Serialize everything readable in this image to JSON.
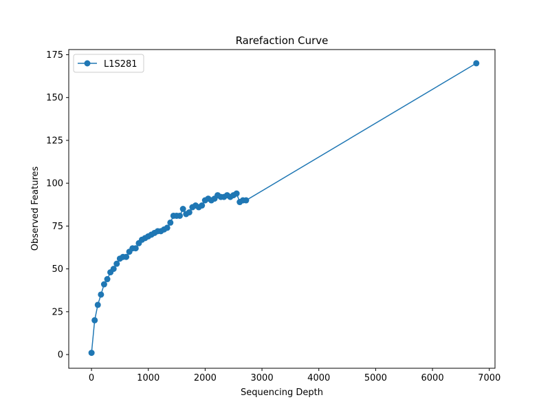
{
  "chart_data": {
    "type": "line",
    "title": "Rarefaction Curve",
    "xlabel": "Sequencing Depth",
    "ylabel": "Observed Features",
    "xlim": [
      -400,
      7100
    ],
    "ylim": [
      -8,
      178
    ],
    "xticks": [
      0,
      1000,
      2000,
      3000,
      4000,
      5000,
      6000,
      7000
    ],
    "yticks": [
      0,
      25,
      50,
      75,
      100,
      125,
      150,
      175
    ],
    "grid": false,
    "legend_position": "top-left",
    "colors": {
      "series": "#1f77b4"
    },
    "series": [
      {
        "name": "L1S281",
        "x": [
          1,
          56,
          111,
          167,
          222,
          278,
          333,
          389,
          444,
          500,
          555,
          611,
          666,
          722,
          777,
          833,
          888,
          944,
          999,
          1055,
          1110,
          1166,
          1221,
          1277,
          1332,
          1388,
          1443,
          1499,
          1554,
          1610,
          1665,
          1721,
          1776,
          1832,
          1887,
          1943,
          1998,
          2054,
          2109,
          2165,
          2220,
          2276,
          2331,
          2387,
          2442,
          2498,
          2553,
          2609,
          2664,
          2720,
          6771
        ],
        "y": [
          1,
          20,
          29,
          35,
          41,
          44,
          48,
          50,
          53,
          56,
          57,
          57,
          60,
          62,
          62,
          65,
          67,
          68,
          69,
          70,
          71,
          72,
          72,
          73,
          74,
          77,
          81,
          81,
          81,
          85,
          82,
          83,
          86,
          87,
          86,
          87,
          90,
          91,
          90,
          91,
          93,
          92,
          92,
          93,
          92,
          93,
          94,
          89,
          90,
          90,
          170
        ]
      }
    ]
  }
}
